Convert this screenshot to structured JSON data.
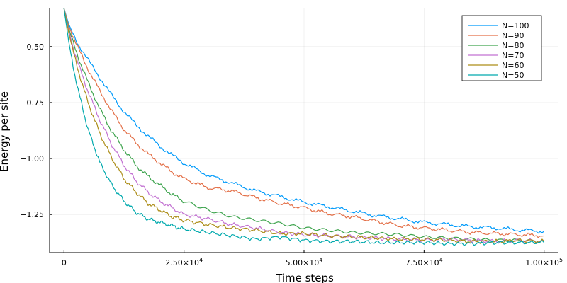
{
  "chart_data": {
    "type": "line",
    "xlabel": "Time steps",
    "ylabel": "Energy per site",
    "xlim": [
      -3000,
      103000
    ],
    "ylim": [
      -1.42,
      -0.33
    ],
    "grid": true,
    "legend_position": "top-right",
    "x_ticks": [
      {
        "value": 0,
        "mantissa": "0",
        "exponent": ""
      },
      {
        "value": 25000,
        "mantissa": "2.50×10",
        "exponent": "4"
      },
      {
        "value": 50000,
        "mantissa": "5.00×10",
        "exponent": "4"
      },
      {
        "value": 75000,
        "mantissa": "7.50×10",
        "exponent": "4"
      },
      {
        "value": 100000,
        "mantissa": "1.00×10",
        "exponent": "5"
      }
    ],
    "y_ticks": [
      {
        "value": -0.5,
        "label": "−0.50"
      },
      {
        "value": -0.75,
        "label": "−0.75"
      },
      {
        "value": -1.0,
        "label": "−1.00"
      },
      {
        "value": -1.25,
        "label": "−1.25"
      }
    ],
    "x": [
      0,
      1000,
      2000,
      3000,
      5000,
      7500,
      10000,
      12500,
      15000,
      17500,
      20000,
      22500,
      25000,
      30000,
      35000,
      40000,
      45000,
      50000,
      55000,
      60000,
      65000,
      70000,
      75000,
      80000,
      85000,
      90000,
      95000,
      100000
    ],
    "series": [
      {
        "name": "N=100",
        "color": "#009AFA",
        "values": [
          -0.33,
          -0.4,
          -0.45,
          -0.49,
          -0.56,
          -0.64,
          -0.72,
          -0.79,
          -0.85,
          -0.9,
          -0.945,
          -0.985,
          -1.02,
          -1.075,
          -1.11,
          -1.145,
          -1.17,
          -1.195,
          -1.215,
          -1.235,
          -1.255,
          -1.27,
          -1.285,
          -1.295,
          -1.305,
          -1.31,
          -1.32,
          -1.325
        ]
      },
      {
        "name": "N=90",
        "color": "#E36F47",
        "values": [
          -0.33,
          -0.41,
          -0.46,
          -0.51,
          -0.6,
          -0.7,
          -0.79,
          -0.87,
          -0.93,
          -0.98,
          -1.02,
          -1.06,
          -1.09,
          -1.13,
          -1.145,
          -1.175,
          -1.2,
          -1.22,
          -1.245,
          -1.26,
          -1.28,
          -1.3,
          -1.31,
          -1.32,
          -1.33,
          -1.335,
          -1.34,
          -1.345
        ]
      },
      {
        "name": "N=80",
        "color": "#3EA44E",
        "values": [
          -0.33,
          -0.42,
          -0.49,
          -0.55,
          -0.66,
          -0.78,
          -0.88,
          -0.96,
          -1.03,
          -1.08,
          -1.12,
          -1.16,
          -1.19,
          -1.23,
          -1.26,
          -1.275,
          -1.29,
          -1.31,
          -1.32,
          -1.33,
          -1.335,
          -1.34,
          -1.35,
          -1.355,
          -1.36,
          -1.365,
          -1.365,
          -1.37
        ]
      },
      {
        "name": "N=70",
        "color": "#C271D2",
        "values": [
          -0.33,
          -0.43,
          -0.51,
          -0.58,
          -0.7,
          -0.83,
          -0.94,
          -1.03,
          -1.1,
          -1.15,
          -1.19,
          -1.22,
          -1.25,
          -1.27,
          -1.295,
          -1.31,
          -1.33,
          -1.34,
          -1.345,
          -1.35,
          -1.355,
          -1.36,
          -1.365,
          -1.36,
          -1.365,
          -1.37,
          -1.365,
          -1.37
        ]
      },
      {
        "name": "N=60",
        "color": "#AC8D18",
        "values": [
          -0.33,
          -0.44,
          -0.53,
          -0.61,
          -0.75,
          -0.89,
          -1.0,
          -1.09,
          -1.15,
          -1.2,
          -1.23,
          -1.26,
          -1.275,
          -1.295,
          -1.31,
          -1.32,
          -1.335,
          -1.335,
          -1.345,
          -1.35,
          -1.355,
          -1.36,
          -1.36,
          -1.365,
          -1.37,
          -1.37,
          -1.365,
          -1.37
        ]
      },
      {
        "name": "N=50",
        "color": "#00A9AD",
        "values": [
          -0.33,
          -0.48,
          -0.6,
          -0.7,
          -0.87,
          -1.02,
          -1.12,
          -1.19,
          -1.24,
          -1.27,
          -1.285,
          -1.3,
          -1.315,
          -1.33,
          -1.345,
          -1.36,
          -1.35,
          -1.365,
          -1.37,
          -1.37,
          -1.375,
          -1.375,
          -1.375,
          -1.38,
          -1.38,
          -1.375,
          -1.375,
          -1.375
        ]
      }
    ]
  }
}
